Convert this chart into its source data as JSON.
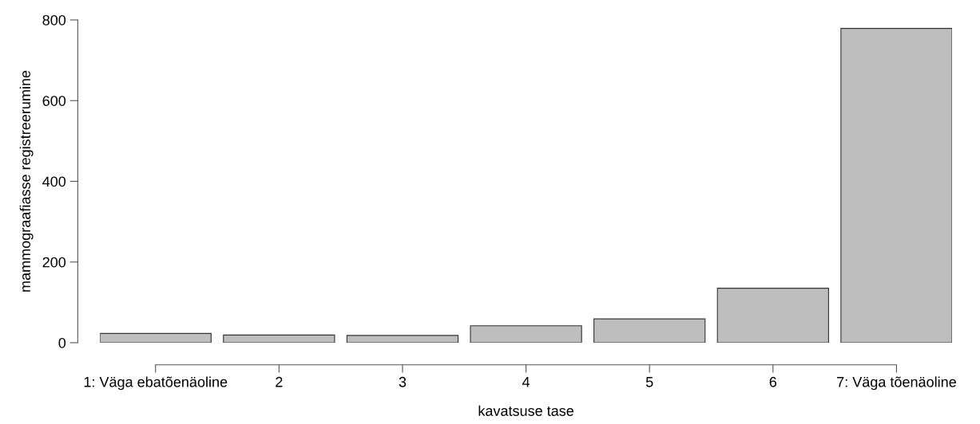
{
  "chart_data": {
    "type": "bar",
    "categories": [
      "1: Väga ebatõenäoline",
      "2",
      "3",
      "4",
      "5",
      "6",
      "7: Väga tõenäoline"
    ],
    "values": [
      23,
      19,
      18,
      42,
      59,
      135,
      779
    ],
    "color": "#bebebe",
    "xlabel": "kavatsuse tase",
    "ylabel": "mammograafiasse registreerumine",
    "ylim": [
      0,
      800
    ],
    "yticks": [
      0,
      200,
      400,
      600,
      800
    ],
    "grid": false,
    "legend": false
  }
}
